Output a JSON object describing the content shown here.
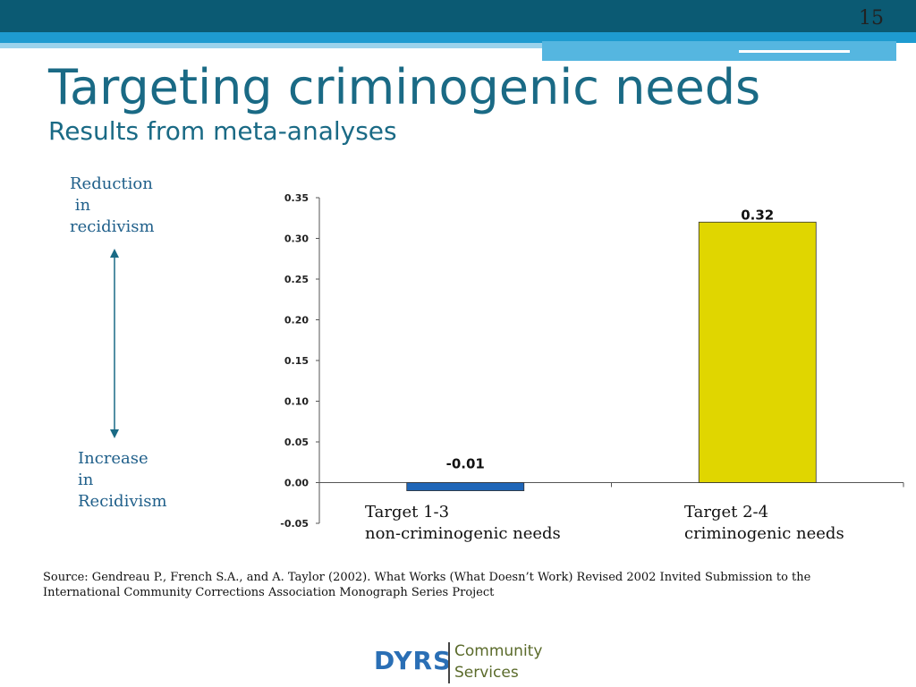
{
  "slide": {
    "page_number": "15",
    "title": "Targeting criminogenic needs",
    "subtitle": "Results from meta-analyses"
  },
  "side_labels": {
    "reduction": "Reduction\n in\nrecidivism",
    "increase": "Increase\nin\nRecidivism"
  },
  "source": "Source: Gendreau P., French S.A., and A. Taylor (2002). What Works (What Doesn’t Work) Revised 2002  Invited Submission to the International Community Corrections Association Monograph Series Project",
  "logo": {
    "brand": "DYRS",
    "line1": "Community",
    "line2": "Services"
  },
  "colors": {
    "header_dark": "#0b5a73",
    "header_light": "#1e9bd0",
    "title": "#1a6a85",
    "arrow": "#1a6a85"
  },
  "chart_data": {
    "type": "bar",
    "categories": [
      "Target 1-3\nnon-criminogenic needs",
      "Target 2-4\ncriminogenic needs"
    ],
    "values": [
      -0.01,
      0.32
    ],
    "data_labels": [
      "-0.01",
      "0.32"
    ],
    "bar_colors": [
      "#1f66b8",
      "#e0d600"
    ],
    "ylim": [
      -0.05,
      0.35
    ],
    "yticks": [
      "0.35",
      "0.30",
      "0.25",
      "0.20",
      "0.15",
      "0.10",
      "0.05",
      "0.00",
      "-0.05"
    ],
    "ytick_values": [
      0.35,
      0.3,
      0.25,
      0.2,
      0.15,
      0.1,
      0.05,
      0.0,
      -0.05
    ],
    "title": "",
    "xlabel": "",
    "ylabel": "",
    "grid": false,
    "legend": "none"
  }
}
